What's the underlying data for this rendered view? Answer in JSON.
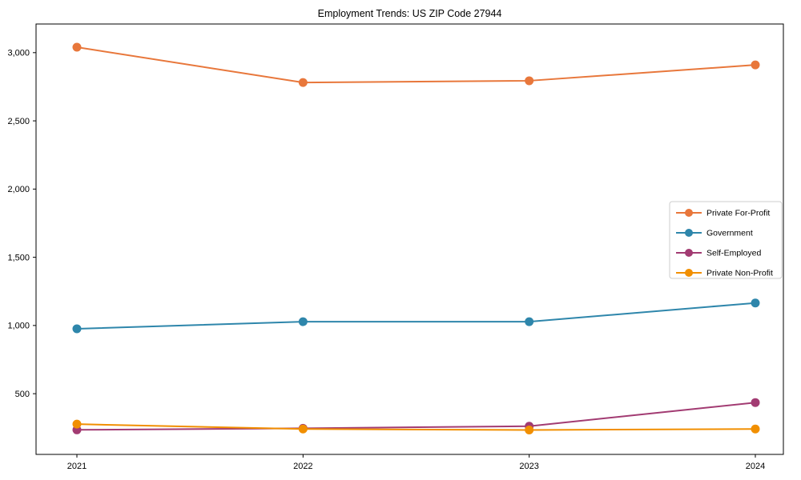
{
  "chart_data": {
    "type": "line",
    "title": "Employment Trends: US ZIP Code 27944",
    "x": [
      "2021",
      "2022",
      "2023",
      "2024"
    ],
    "series": [
      {
        "name": "Private For-Profit",
        "color": "#E8773B",
        "values": [
          3040,
          2781,
          2794,
          2910
        ]
      },
      {
        "name": "Government",
        "color": "#2E86AB",
        "values": [
          976,
          1028,
          1028,
          1165
        ]
      },
      {
        "name": "Self-Employed",
        "color": "#A23B72",
        "values": [
          235,
          246,
          262,
          435
        ]
      },
      {
        "name": "Private Non-Profit",
        "color": "#F18F01",
        "values": [
          277,
          241,
          234,
          241
        ]
      }
    ],
    "yticks": [
      500,
      1000,
      1500,
      2000,
      2500,
      3000
    ],
    "ytick_labels": [
      "500",
      "1,000",
      "1,500",
      "2,000",
      "2,500",
      "3,000"
    ],
    "ylim": [
      55,
      3210
    ],
    "grid": false,
    "legend_position": "center right",
    "box_outline": true
  }
}
